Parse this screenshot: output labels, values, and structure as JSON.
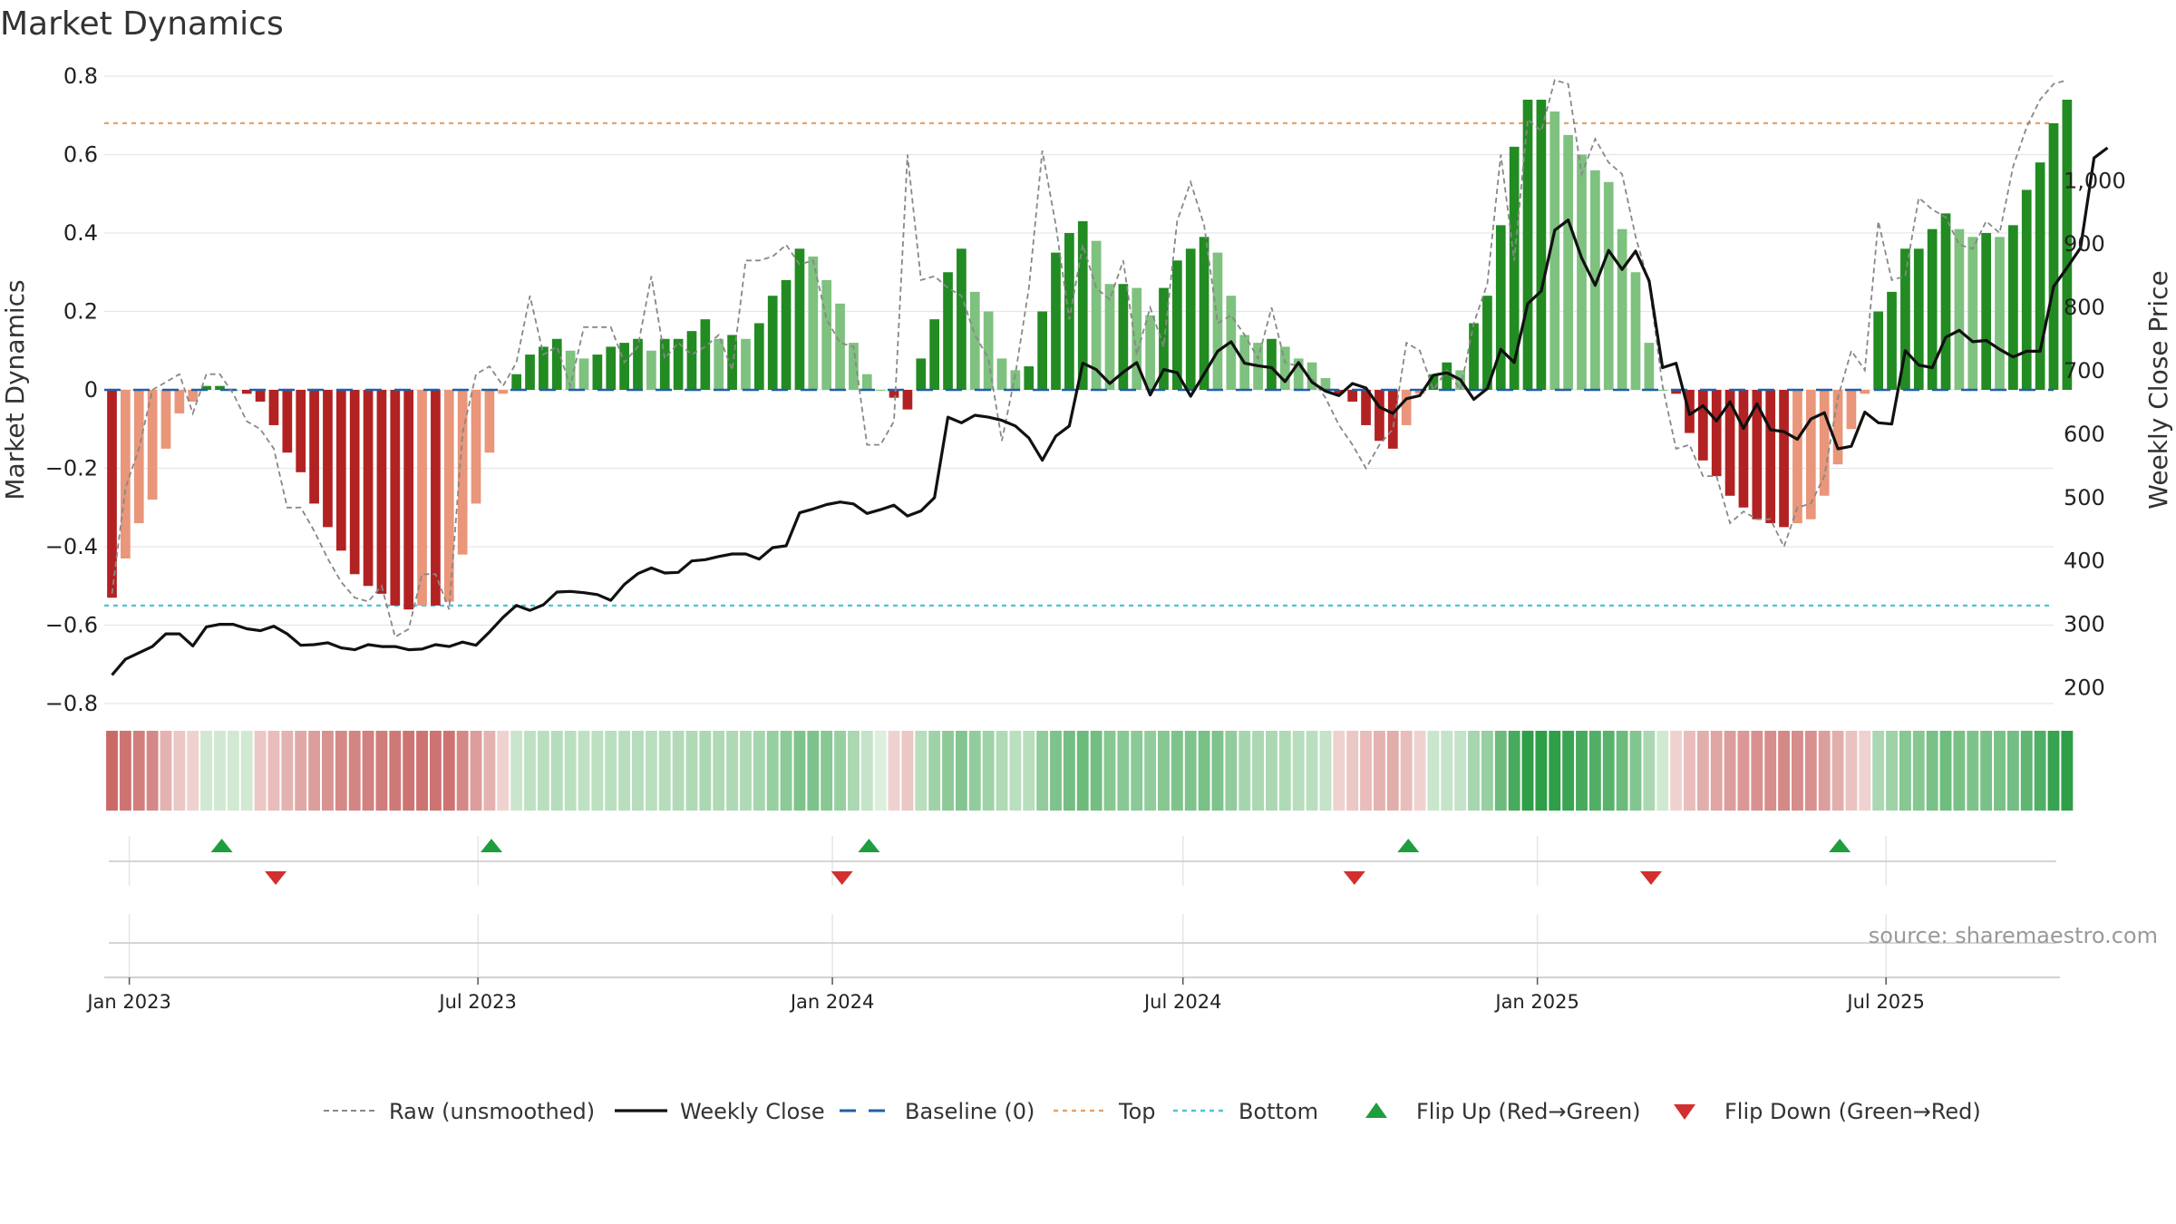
{
  "chart_data": {
    "type": "bar",
    "title": "Market Dynamics",
    "ylabel_left": "Market Dynamics",
    "ylabel_right": "Weekly Close Price",
    "source": "source: sharemaestro.com",
    "left_axis": {
      "ylim": [
        -0.8,
        0.8
      ],
      "ticks": [
        0.8,
        0.6,
        0.4,
        0.2,
        0,
        -0.2,
        -0.4,
        -0.6,
        -0.8
      ],
      "tick_labels": [
        "0.8",
        "0.6",
        "0.4",
        "0.2",
        "0",
        "−0.2",
        "−0.4",
        "−0.6",
        "−0.8"
      ]
    },
    "right_axis": {
      "ticks": [
        1000,
        900,
        800,
        700,
        600,
        500,
        400,
        300,
        200
      ],
      "tick_labels": [
        "1,000",
        "900",
        "800",
        "700",
        "600",
        "500",
        "400",
        "300",
        "200"
      ],
      "price_at_top": 1165,
      "price_at_bottom": 175
    },
    "x_start": "2022-12-19",
    "x_end": "2025-09-26",
    "date_ticks": [
      {
        "date": "2023-01-01",
        "label": "Jan 2023"
      },
      {
        "date": "2023-07-01",
        "label": "Jul 2023"
      },
      {
        "date": "2024-01-01",
        "label": "Jan 2024"
      },
      {
        "date": "2024-07-01",
        "label": "Jul 2024"
      },
      {
        "date": "2025-01-01",
        "label": "Jan 2025"
      },
      {
        "date": "2025-07-01",
        "label": "Jul 2025"
      }
    ],
    "first_week": "2022-12-23",
    "top_line": 0.68,
    "bottom_line": -0.55,
    "baseline": 0,
    "dynamics": [
      -0.53,
      -0.43,
      -0.34,
      -0.28,
      -0.15,
      -0.06,
      -0.03,
      0.01,
      0.01,
      0.0,
      -0.01,
      -0.03,
      -0.09,
      -0.16,
      -0.21,
      -0.29,
      -0.35,
      -0.41,
      -0.47,
      -0.5,
      -0.52,
      -0.55,
      -0.56,
      -0.55,
      -0.55,
      -0.54,
      -0.42,
      -0.29,
      -0.16,
      -0.01,
      0.04,
      0.09,
      0.11,
      0.13,
      0.1,
      0.08,
      0.09,
      0.11,
      0.12,
      0.13,
      0.1,
      0.13,
      0.13,
      0.15,
      0.18,
      0.13,
      0.14,
      0.13,
      0.17,
      0.24,
      0.28,
      0.36,
      0.34,
      0.28,
      0.22,
      0.12,
      0.04,
      0.0,
      -0.02,
      -0.05,
      0.08,
      0.18,
      0.3,
      0.36,
      0.25,
      0.2,
      0.08,
      0.05,
      0.06,
      0.2,
      0.35,
      0.4,
      0.43,
      0.38,
      0.27,
      0.27,
      0.26,
      0.19,
      0.26,
      0.33,
      0.36,
      0.39,
      0.35,
      0.24,
      0.14,
      0.12,
      0.13,
      0.11,
      0.08,
      0.07,
      0.03,
      -0.01,
      -0.03,
      -0.09,
      -0.13,
      -0.15,
      -0.09,
      -0.01,
      0.04,
      0.07,
      0.05,
      0.17,
      0.24,
      0.42,
      0.62,
      0.74,
      0.74,
      0.71,
      0.65,
      0.6,
      0.56,
      0.53,
      0.41,
      0.3,
      0.12,
      0.0,
      -0.01,
      -0.11,
      -0.18,
      -0.22,
      -0.27,
      -0.3,
      -0.33,
      -0.34,
      -0.35,
      -0.34,
      -0.33,
      -0.27,
      -0.19,
      -0.1,
      -0.01,
      0.2,
      0.25,
      0.36,
      0.36,
      0.41,
      0.45,
      0.41,
      0.39,
      0.4,
      0.39,
      0.42,
      0.51,
      0.58,
      0.68,
      0.74
    ],
    "raw": [
      -0.52,
      -0.25,
      -0.15,
      0.0,
      0.02,
      0.04,
      -0.06,
      0.04,
      0.04,
      -0.01,
      -0.08,
      -0.1,
      -0.15,
      -0.3,
      -0.3,
      -0.36,
      -0.43,
      -0.49,
      -0.53,
      -0.54,
      -0.5,
      -0.63,
      -0.61,
      -0.47,
      -0.47,
      -0.56,
      -0.11,
      0.04,
      0.06,
      0.01,
      0.07,
      0.24,
      0.09,
      0.11,
      0.01,
      0.16,
      0.16,
      0.16,
      0.07,
      0.11,
      0.29,
      0.08,
      0.12,
      0.09,
      0.11,
      0.14,
      0.05,
      0.33,
      0.33,
      0.34,
      0.37,
      0.32,
      0.33,
      0.18,
      0.12,
      0.11,
      -0.14,
      -0.14,
      -0.08,
      0.6,
      0.28,
      0.29,
      0.26,
      0.24,
      0.14,
      0.08,
      -0.13,
      0.04,
      0.26,
      0.61,
      0.42,
      0.18,
      0.37,
      0.26,
      0.23,
      0.33,
      0.09,
      0.21,
      0.11,
      0.43,
      0.53,
      0.42,
      0.17,
      0.19,
      0.14,
      0.08,
      0.21,
      0.07,
      0.06,
      0.03,
      -0.02,
      -0.09,
      -0.14,
      -0.2,
      -0.14,
      -0.1,
      0.12,
      0.1,
      0.0,
      0.05,
      0.0,
      0.17,
      0.27,
      0.6,
      0.33,
      0.69,
      0.66,
      0.79,
      0.78,
      0.55,
      0.64,
      0.58,
      0.55,
      0.39,
      0.27,
      0.01,
      -0.15,
      -0.14,
      -0.22,
      -0.22,
      -0.34,
      -0.31,
      -0.33,
      -0.33,
      -0.4,
      -0.3,
      -0.29,
      -0.22,
      -0.02,
      0.1,
      0.05,
      0.43,
      0.28,
      0.29,
      0.49,
      0.46,
      0.44,
      0.37,
      0.36,
      0.43,
      0.4,
      0.57,
      0.67,
      0.74,
      0.78,
      0.79
    ],
    "close": [
      220,
      245,
      255,
      265,
      285,
      285,
      266,
      296,
      300,
      300,
      293,
      290,
      297,
      285,
      267,
      268,
      271,
      263,
      260,
      268,
      265,
      265,
      260,
      261,
      268,
      265,
      272,
      267,
      288,
      311,
      330,
      322,
      331,
      351,
      352,
      350,
      347,
      338,
      363,
      380,
      389,
      381,
      382,
      400,
      402,
      407,
      411,
      411,
      403,
      421,
      424,
      476,
      482,
      489,
      493,
      490,
      475,
      481,
      488,
      471,
      479,
      500,
      627,
      618,
      630,
      627,
      622,
      613,
      594,
      559,
      597,
      613,
      712,
      702,
      680,
      698,
      713,
      662,
      702,
      697,
      660,
      695,
      731,
      746,
      712,
      708,
      705,
      683,
      713,
      682,
      668,
      661,
      680,
      673,
      643,
      633,
      656,
      661,
      693,
      697,
      686,
      655,
      672,
      734,
      713,
      806,
      826,
      922,
      938,
      878,
      835,
      890,
      860,
      889,
      842,
      705,
      712,
      631,
      645,
      621,
      651,
      609,
      648,
      607,
      604,
      592,
      624,
      634,
      577,
      581,
      635,
      618,
      616,
      732,
      709,
      705,
      753,
      764,
      746,
      748,
      734,
      722,
      731,
      731,
      833,
      863,
      894,
      1036,
      1052
    ],
    "strip_scores": [
      -0.55,
      -0.5,
      -0.45,
      -0.4,
      -0.2,
      -0.1,
      -0.05,
      0.05,
      0.05,
      0.05,
      0.05,
      -0.1,
      -0.15,
      -0.2,
      -0.25,
      -0.3,
      -0.35,
      -0.4,
      -0.42,
      -0.44,
      -0.46,
      -0.48,
      -0.5,
      -0.5,
      -0.5,
      -0.5,
      -0.4,
      -0.3,
      -0.2,
      -0.05,
      0.08,
      0.12,
      0.14,
      0.16,
      0.14,
      0.12,
      0.13,
      0.14,
      0.15,
      0.16,
      0.14,
      0.16,
      0.17,
      0.18,
      0.2,
      0.18,
      0.19,
      0.18,
      0.22,
      0.28,
      0.32,
      0.38,
      0.38,
      0.34,
      0.28,
      0.2,
      0.1,
      0.0,
      -0.05,
      -0.1,
      0.15,
      0.25,
      0.32,
      0.36,
      0.3,
      0.25,
      0.18,
      0.14,
      0.15,
      0.3,
      0.38,
      0.42,
      0.45,
      0.42,
      0.35,
      0.34,
      0.33,
      0.3,
      0.35,
      0.38,
      0.38,
      0.4,
      0.38,
      0.3,
      0.22,
      0.2,
      0.2,
      0.18,
      0.15,
      0.14,
      0.1,
      -0.05,
      -0.1,
      -0.15,
      -0.2,
      -0.22,
      -0.15,
      -0.05,
      0.08,
      0.1,
      0.1,
      0.22,
      0.28,
      0.45,
      0.6,
      0.72,
      0.72,
      0.7,
      0.65,
      0.6,
      0.56,
      0.53,
      0.45,
      0.36,
      0.2,
      0.05,
      -0.05,
      -0.15,
      -0.22,
      -0.26,
      -0.3,
      -0.33,
      -0.36,
      -0.38,
      -0.4,
      -0.38,
      -0.36,
      -0.3,
      -0.22,
      -0.12,
      -0.05,
      0.2,
      0.25,
      0.35,
      0.35,
      0.4,
      0.44,
      0.4,
      0.38,
      0.4,
      0.4,
      0.42,
      0.5,
      0.56,
      0.66,
      0.72
    ],
    "flips_up": [
      "2023-02-18",
      "2023-07-08",
      "2024-01-20",
      "2024-10-26",
      "2025-06-07"
    ],
    "flips_down": [
      "2023-03-18",
      "2024-01-06",
      "2024-09-28",
      "2025-03-01"
    ],
    "colors": {
      "pos_strong": "#228B22",
      "pos_light": "#7FC17F",
      "neg_strong": "#B22222",
      "neg_light": "#E9967A",
      "raw": "#888888",
      "close": "#111111",
      "baseline": "#1F5FA8",
      "top": "#E6A36A",
      "bottom": "#4FC3D6",
      "flip_up": "#1E9E3E",
      "flip_down": "#D32F2F",
      "grid": "#E6E6E6"
    },
    "legend": [
      {
        "key": "raw",
        "label": "Raw (unsmoothed)"
      },
      {
        "key": "close",
        "label": "Weekly Close"
      },
      {
        "key": "baseline",
        "label": "Baseline (0)"
      },
      {
        "key": "top",
        "label": "Top"
      },
      {
        "key": "bottom",
        "label": "Bottom"
      },
      {
        "key": "flip_up",
        "label": "Flip Up (Red→Green)"
      },
      {
        "key": "flip_down",
        "label": "Flip Down (Green→Red)"
      }
    ]
  }
}
